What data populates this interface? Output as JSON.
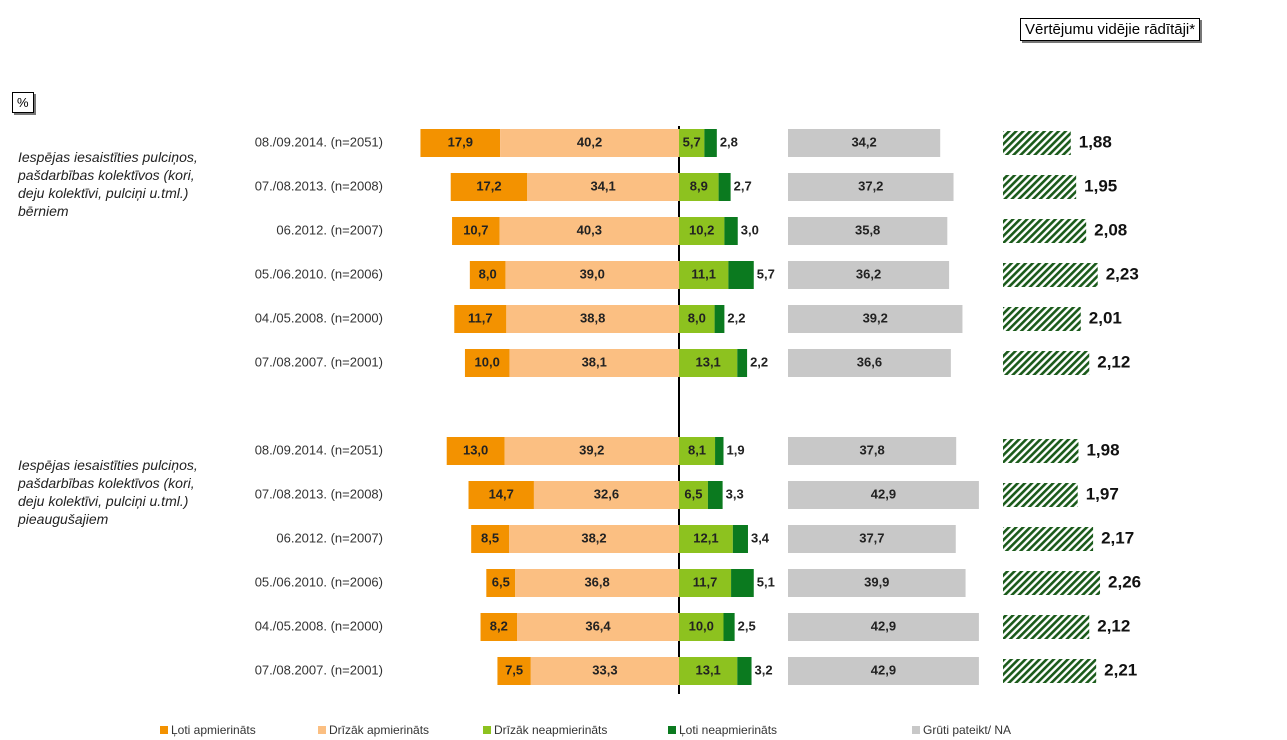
{
  "unit": "%",
  "mean_title": "Vērtējumu vidējie rādītāji*",
  "chart_data": [
    {
      "type": "bar",
      "title": "Iespējas iesaistīties pulciņos, pašdarbības kolektīvos (kori, deju kolektīvi, pulciņi u.tml.) bērniem",
      "categories": [
        "08./09.2014. (n=2051)",
        "07./08.2013. (n=2008)",
        "06.2012. (n=2007)",
        "05./06.2010. (n=2006)",
        "04./05.2008. (n=2000)",
        "07./08.2007. (n=2001)"
      ],
      "series": [
        {
          "name": "Ļoti apmierināts",
          "color": "#f39200",
          "values": [
            17.9,
            17.2,
            10.7,
            8.0,
            11.7,
            10.0
          ],
          "value_labels": [
            "17,9",
            "17,2",
            "10,7",
            "8,0",
            "11,7",
            "10,0"
          ]
        },
        {
          "name": "Drīzāk apmierināts",
          "color": "#fbbf82",
          "values": [
            40.2,
            34.1,
            40.3,
            39.0,
            38.8,
            38.1
          ],
          "value_labels": [
            "40,2",
            "34,1",
            "40,3",
            "39,0",
            "38,8",
            "38,1"
          ]
        },
        {
          "name": "Drīzāk neapmierināts",
          "color": "#8dc21f",
          "values": [
            5.7,
            8.9,
            10.2,
            11.1,
            8.0,
            13.1
          ],
          "value_labels": [
            "5,7",
            "8,9",
            "10,2",
            "11,1",
            "8,0",
            "13,1"
          ]
        },
        {
          "name": "Ļoti neapmierināts",
          "color": "#0b7a1f",
          "values": [
            2.8,
            2.7,
            3.0,
            5.7,
            2.2,
            2.2
          ],
          "value_labels": [
            "2,8",
            "2,7",
            "3,0",
            "5,7",
            "2,2",
            "2,2"
          ]
        },
        {
          "name": "Grūti pateikt/ NA",
          "color": "#c8c8c8",
          "values": [
            34.2,
            37.2,
            35.8,
            36.2,
            39.2,
            36.6
          ],
          "value_labels": [
            "34,2",
            "37,2",
            "35,8",
            "36,2",
            "39,2",
            "36,6"
          ]
        }
      ],
      "means": {
        "color": "#1a5a1a",
        "values": [
          1.88,
          1.95,
          2.08,
          2.23,
          2.01,
          2.12
        ],
        "value_labels": [
          "1,88",
          "1,95",
          "2,08",
          "2,23",
          "2,01",
          "2,12"
        ]
      }
    },
    {
      "type": "bar",
      "title": "Iespējas iesaistīties pulciņos, pašdarbības kolektīvos (kori, deju kolektīvi, pulciņi u.tml.) pieaugušajiem",
      "categories": [
        "08./09.2014. (n=2051)",
        "07./08.2013. (n=2008)",
        "06.2012. (n=2007)",
        "05./06.2010. (n=2006)",
        "04./05.2008. (n=2000)",
        "07./08.2007. (n=2001)"
      ],
      "series": [
        {
          "name": "Ļoti apmierināts",
          "color": "#f39200",
          "values": [
            13.0,
            14.7,
            8.5,
            6.5,
            8.2,
            7.5
          ],
          "value_labels": [
            "13,0",
            "14,7",
            "8,5",
            "6,5",
            "8,2",
            "7,5"
          ]
        },
        {
          "name": "Drīzāk apmierināts",
          "color": "#fbbf82",
          "values": [
            39.2,
            32.6,
            38.2,
            36.8,
            36.4,
            33.3
          ],
          "value_labels": [
            "39,2",
            "32,6",
            "38,2",
            "36,8",
            "36,4",
            "33,3"
          ]
        },
        {
          "name": "Drīzāk neapmierināts",
          "color": "#8dc21f",
          "values": [
            8.1,
            6.5,
            12.1,
            11.7,
            10.0,
            13.1
          ],
          "value_labels": [
            "8,1",
            "6,5",
            "12,1",
            "11,7",
            "10,0",
            "13,1"
          ]
        },
        {
          "name": "Ļoti neapmierināts",
          "color": "#0b7a1f",
          "values": [
            1.9,
            3.3,
            3.4,
            5.1,
            2.5,
            3.2
          ],
          "value_labels": [
            "1,9",
            "3,3",
            "3,4",
            "5,1",
            "2,5",
            "3,2"
          ]
        },
        {
          "name": "Grūti pateikt/ NA",
          "color": "#c8c8c8",
          "values": [
            37.8,
            42.9,
            37.7,
            39.9,
            42.9,
            42.9
          ],
          "value_labels": [
            "37,8",
            "42,9",
            "37,7",
            "39,9",
            "42,9",
            "42,9"
          ]
        }
      ],
      "means": {
        "color": "#1a5a1a",
        "values": [
          1.98,
          1.97,
          2.17,
          2.26,
          2.12,
          2.21
        ],
        "value_labels": [
          "1,98",
          "1,97",
          "2,17",
          "2,26",
          "2,12",
          "2,21"
        ]
      }
    }
  ]
}
